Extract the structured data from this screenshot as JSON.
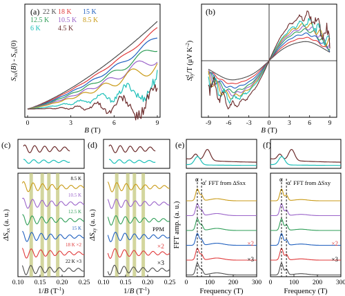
{
  "colors": {
    "22K": "#4d4d4d",
    "18K": "#e0393a",
    "15K": "#1f5fbf",
    "12.5K": "#2e9e57",
    "10.5K": "#9a63c9",
    "8.5K": "#c99a15",
    "6K": "#1bbfb8",
    "4.5K": "#6b2a2a",
    "band": "#c4c87e"
  },
  "chart_data": [
    {
      "id": "a",
      "panel_label": "(a)",
      "type": "line",
      "xlabel": "B (T)",
      "ylabel": "Sxx(B) - Sxx(0)",
      "xlim": [
        0,
        9
      ],
      "xticks": [
        "0",
        "3",
        "6",
        "9"
      ],
      "legend": [
        "22 K",
        "18 K",
        "15 K",
        "12.5 K",
        "10.5 K",
        "8.5 K",
        "6 K",
        "4.5 K"
      ],
      "series": [
        {
          "name": "22 K",
          "endpoint": 0.92,
          "osc": 0.0
        },
        {
          "name": "18 K",
          "endpoint": 0.84,
          "osc": 0.02
        },
        {
          "name": "15 K",
          "endpoint": 0.75,
          "osc": 0.04
        },
        {
          "name": "12.5 K",
          "endpoint": 0.66,
          "osc": 0.06
        },
        {
          "name": "10.5 K",
          "endpoint": 0.56,
          "osc": 0.08
        },
        {
          "name": "8.5 K",
          "endpoint": 0.48,
          "osc": 0.1
        },
        {
          "name": "6 K",
          "endpoint": 0.25,
          "osc": 0.13
        },
        {
          "name": "4.5 K",
          "endpoint": 0.05,
          "osc": 0.17
        }
      ]
    },
    {
      "id": "b",
      "panel_label": "(b)",
      "type": "line",
      "xlabel": "B (T)",
      "ylabel": "Sdxy/T (μV K⁻²)",
      "xlim": [
        -9,
        9
      ],
      "xticks": [
        "-9",
        "-6",
        "-3",
        "0",
        "3",
        "6",
        "9"
      ],
      "series_note": "odd-in-field curves for the same temperatures as (a)"
    },
    {
      "id": "c",
      "panel_label": "(c)",
      "type": "line",
      "xlabel": "1/B (T⁻¹)",
      "ylabel": "ΔSxx (a. u.)",
      "xlim": [
        0.1,
        0.25
      ],
      "xticks": [
        "0.10",
        "0.15",
        "0.20",
        "0.25"
      ],
      "bands": [
        0.13,
        0.155,
        0.17,
        0.19
      ],
      "labels": [
        "8.5 K",
        "10.5 K",
        "12.5 K",
        "15 K",
        "18 K ×2",
        "22 K ×3"
      ]
    },
    {
      "id": "d",
      "panel_label": "(d)",
      "type": "line",
      "xlabel": "1/B (T⁻¹)",
      "ylabel": "ΔSxy (a. u.)",
      "xlim": [
        0.1,
        0.25
      ],
      "xticks": [
        "0.10",
        "0.15",
        "0.20",
        "0.25"
      ],
      "bands": [
        0.13,
        0.155,
        0.17,
        0.19
      ],
      "labels": [
        "PPM",
        "×2",
        "×3"
      ]
    },
    {
      "id": "e",
      "panel_label": "(e)",
      "type": "line",
      "xlabel": "Frequency (T)",
      "ylabel": "FFT amp. (a. u.)",
      "xlim": [
        0,
        300
      ],
      "xticks": [
        "0",
        "100",
        "200",
        "300"
      ],
      "peaks": {
        "alpha": 47,
        "alpha_prime": 65
      },
      "annotation": "FFT from ΔSxx",
      "labels": [
        "α",
        "α'",
        "×2",
        "×3"
      ]
    },
    {
      "id": "f",
      "panel_label": "(f)",
      "type": "line",
      "xlabel": "Frequency (T)",
      "ylabel": "",
      "xlim": [
        0,
        300
      ],
      "xticks": [
        "0",
        "100",
        "200",
        "300"
      ],
      "peaks": {
        "alpha": 47,
        "alpha_prime": 68
      },
      "annotation": "FFT from ΔSxy",
      "labels": [
        "α",
        "α'",
        "×2",
        "×3"
      ]
    }
  ]
}
